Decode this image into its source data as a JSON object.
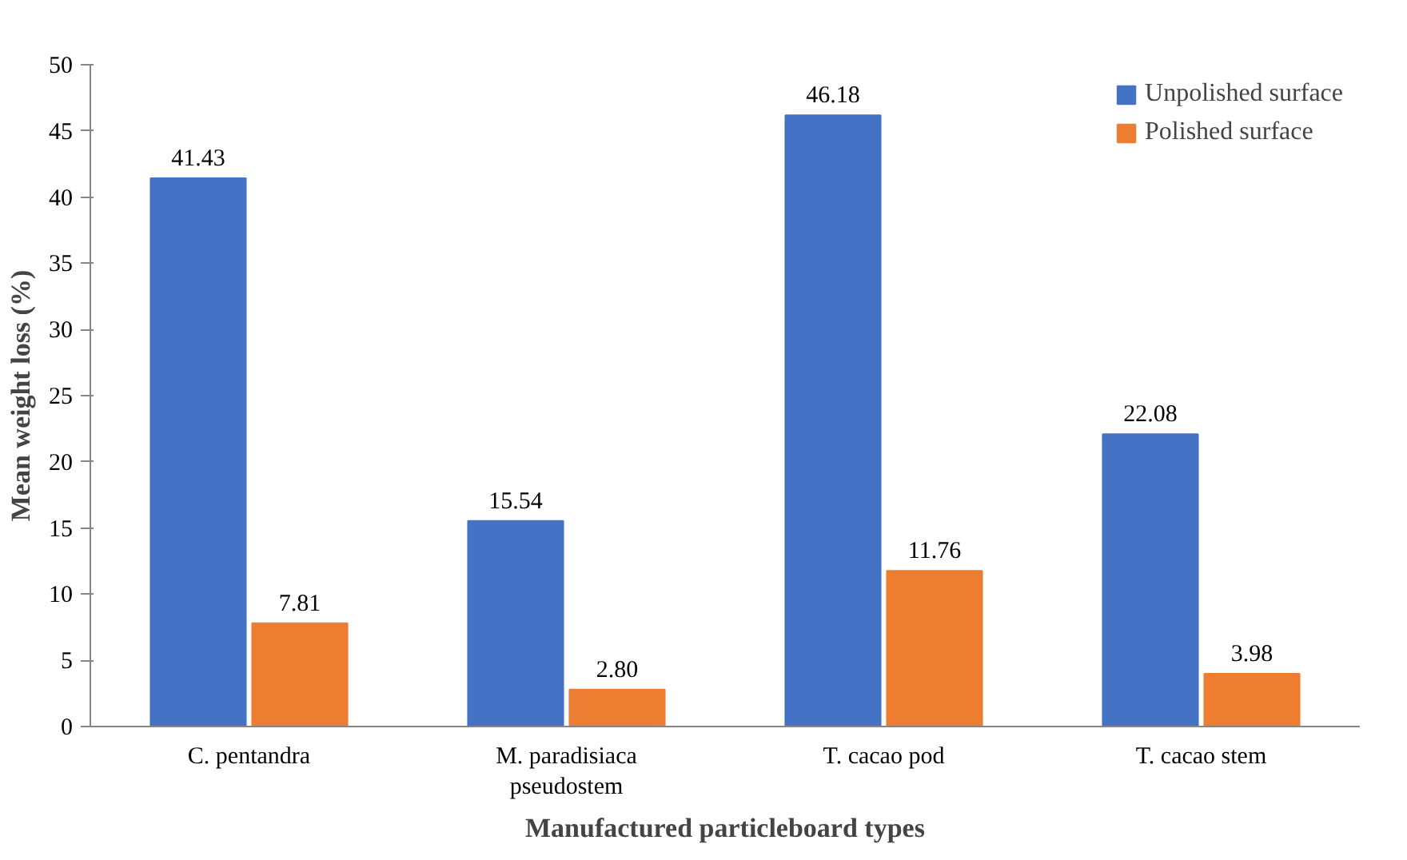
{
  "chart_data": {
    "type": "bar",
    "xlabel": "Manufactured particleboard types",
    "ylabel": "Mean weight loss (%)",
    "categories": [
      "C. pentandra",
      "M. paradisiaca pseudostem",
      "T. cacao pod",
      "T. cacao stem"
    ],
    "series": [
      {
        "name": "Unpolished surface",
        "color": "#4472c4",
        "values": [
          41.43,
          15.54,
          46.18,
          22.08
        ],
        "value_labels": [
          "41.43",
          "15.54",
          "46.18",
          "22.08"
        ]
      },
      {
        "name": "Polished surface",
        "color": "#ed7d31",
        "values": [
          7.81,
          2.8,
          11.76,
          3.98
        ],
        "value_labels": [
          "7.81",
          "2.80",
          "11.76",
          "3.98"
        ]
      }
    ],
    "ylim": [
      0,
      50
    ],
    "yticks": [
      0,
      5,
      10,
      15,
      20,
      25,
      30,
      35,
      40,
      45,
      50
    ],
    "grid": false,
    "legend": "top right"
  }
}
